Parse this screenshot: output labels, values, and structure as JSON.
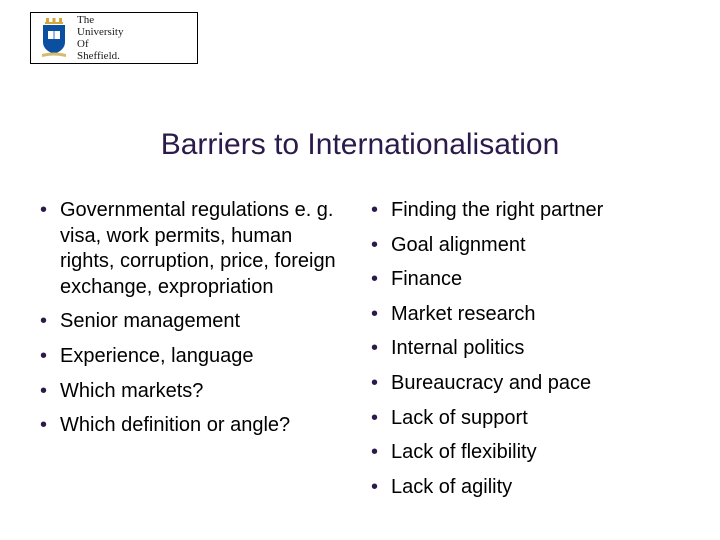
{
  "logo": {
    "line1": "The",
    "line2": "University",
    "line3": "Of",
    "line4": "Sheffield.",
    "crest_shield_fill": "#0a4fa0",
    "crest_crown_fill": "#d4a83a",
    "crest_book_fill": "#ffffff",
    "crest_scroll_fill": "#d9b96a"
  },
  "title": "Barriers to Internationalisation",
  "title_color": "#2b1a4a",
  "title_fontsize": 30,
  "bullet_color": "#2b1a4a",
  "body_fontsize": 20,
  "left_items": [
    "Governmental regulations e. g. visa, work permits, human rights, corruption, price, foreign exchange, expropriation",
    "Senior management",
    "Experience, language",
    "Which markets?",
    "Which definition or angle?"
  ],
  "right_items": [
    "Finding the right partner",
    "Goal alignment",
    "Finance",
    "Market research",
    "Internal politics",
    "Bureaucracy and pace",
    "Lack of support",
    "Lack of flexibility",
    "Lack of agility"
  ],
  "background_color": "#ffffff"
}
